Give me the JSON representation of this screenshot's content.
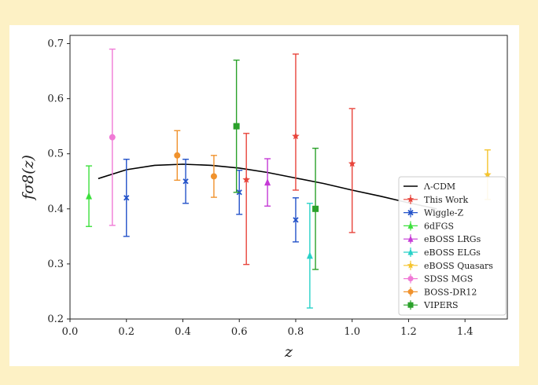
{
  "chart_data": {
    "type": "scatter",
    "xlabel": "z",
    "ylabel": "fσ8(z)",
    "xlim": [
      0.0,
      1.55
    ],
    "ylim": [
      0.2,
      0.715
    ],
    "x_ticks": [
      "0.0",
      "0.2",
      "0.4",
      "0.6",
      "0.8",
      "1.0",
      "1.2",
      "1.4"
    ],
    "y_ticks": [
      "0.2",
      "0.3",
      "0.4",
      "0.5",
      "0.6",
      "0.7"
    ],
    "grid": false,
    "legend_position": "lower-right",
    "model": {
      "name": "Λ-CDM",
      "color": "#000000",
      "points": [
        [
          0.1,
          0.455
        ],
        [
          0.2,
          0.471
        ],
        [
          0.3,
          0.479
        ],
        [
          0.4,
          0.481
        ],
        [
          0.5,
          0.479
        ],
        [
          0.6,
          0.474
        ],
        [
          0.7,
          0.466
        ],
        [
          0.8,
          0.456
        ],
        [
          0.9,
          0.446
        ],
        [
          1.0,
          0.434
        ],
        [
          1.1,
          0.423
        ],
        [
          1.2,
          0.411
        ],
        [
          1.3,
          0.4
        ]
      ]
    },
    "series": [
      {
        "name": "This Work",
        "color": "#e8453c",
        "marker": "star",
        "points": [
          {
            "x": 0.625,
            "y": 0.453,
            "lo": 0.299,
            "hi": 0.537
          },
          {
            "x": 0.8,
            "y": 0.532,
            "lo": 0.434,
            "hi": 0.681
          },
          {
            "x": 1.0,
            "y": 0.482,
            "lo": 0.357,
            "hi": 0.582
          }
        ]
      },
      {
        "name": "Wiggle-Z",
        "color": "#2352c9",
        "marker": "x",
        "points": [
          {
            "x": 0.2,
            "y": 0.42,
            "lo": 0.35,
            "hi": 0.49
          },
          {
            "x": 0.41,
            "y": 0.45,
            "lo": 0.41,
            "hi": 0.49
          },
          {
            "x": 0.6,
            "y": 0.43,
            "lo": 0.39,
            "hi": 0.47
          },
          {
            "x": 0.8,
            "y": 0.38,
            "lo": 0.34,
            "hi": 0.42
          }
        ]
      },
      {
        "name": "6dFGS",
        "color": "#3ce03c",
        "marker": "triangle",
        "points": [
          {
            "x": 0.067,
            "y": 0.423,
            "lo": 0.368,
            "hi": 0.478
          }
        ]
      },
      {
        "name": "eBOSS LRGs",
        "color": "#c53ad6",
        "marker": "triangle",
        "points": [
          {
            "x": 0.7,
            "y": 0.448,
            "lo": 0.405,
            "hi": 0.491
          }
        ]
      },
      {
        "name": "eBOSS ELGs",
        "color": "#27d1c8",
        "marker": "triangle",
        "points": [
          {
            "x": 0.85,
            "y": 0.315,
            "lo": 0.22,
            "hi": 0.41
          }
        ]
      },
      {
        "name": "eBOSS Quasars",
        "color": "#f5c42d",
        "marker": "star",
        "points": [
          {
            "x": 1.48,
            "y": 0.462,
            "lo": 0.417,
            "hi": 0.507
          }
        ]
      },
      {
        "name": "SDSS MGS",
        "color": "#f07ad6",
        "marker": "circle",
        "points": [
          {
            "x": 0.15,
            "y": 0.53,
            "lo": 0.37,
            "hi": 0.69
          }
        ]
      },
      {
        "name": "BOSS-DR12",
        "color": "#f0922d",
        "marker": "circle",
        "points": [
          {
            "x": 0.38,
            "y": 0.497,
            "lo": 0.452,
            "hi": 0.542
          },
          {
            "x": 0.51,
            "y": 0.459,
            "lo": 0.421,
            "hi": 0.497
          }
        ]
      },
      {
        "name": "VIPERS",
        "color": "#2aa12a",
        "marker": "square",
        "points": [
          {
            "x": 0.59,
            "y": 0.55,
            "lo": 0.43,
            "hi": 0.67
          },
          {
            "x": 0.87,
            "y": 0.4,
            "lo": 0.29,
            "hi": 0.51
          }
        ]
      }
    ]
  }
}
